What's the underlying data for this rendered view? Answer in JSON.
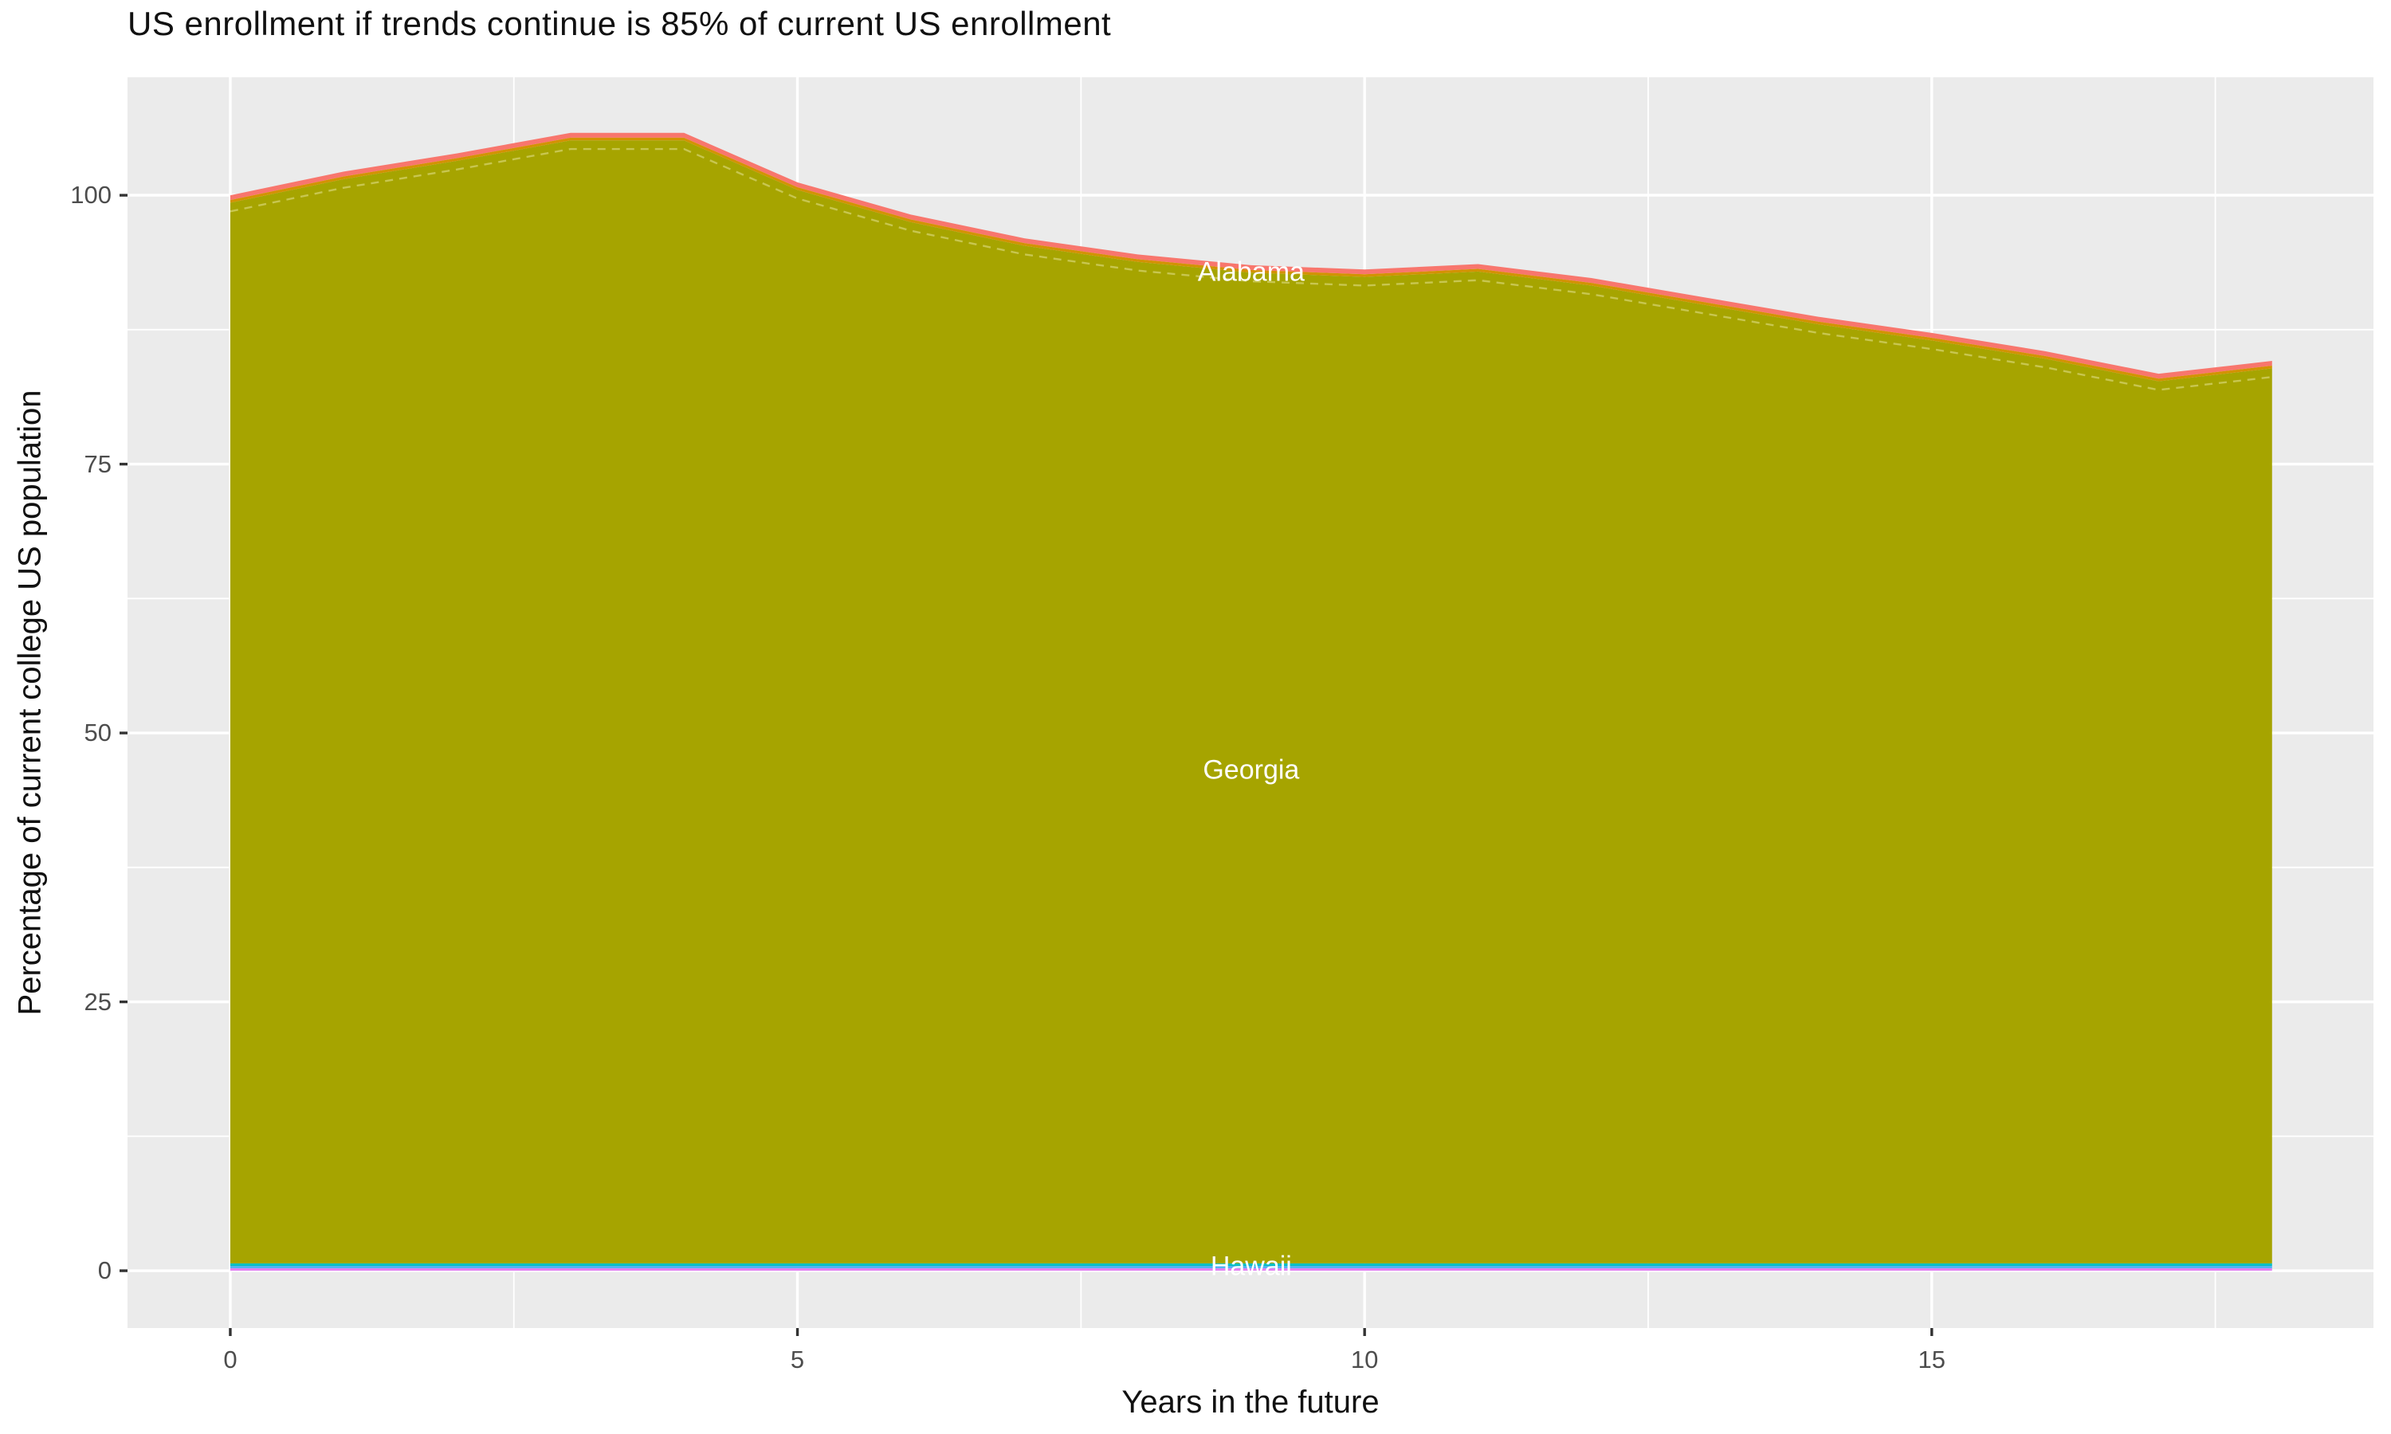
{
  "chart_data": {
    "type": "area",
    "variant": "stacked",
    "title": "US enrollment if trends continue is 85% of current US enrollment",
    "xlabel": "Years in the future",
    "ylabel": "Percentage of current college US population",
    "panel_bg": "#EBEBEB",
    "gridline_color": "#FFFFFF",
    "tick_mark_color": "#333333",
    "tick_label_color": "#4d4d4d",
    "x": [
      0,
      1,
      2,
      3,
      4,
      5,
      6,
      7,
      8,
      9,
      10,
      11,
      12,
      13,
      14,
      15,
      16,
      17,
      18
    ],
    "xticks": [
      {
        "value": 0,
        "label": "0"
      },
      {
        "value": 5,
        "label": "5"
      },
      {
        "value": 10,
        "label": "10"
      },
      {
        "value": 15,
        "label": "15"
      }
    ],
    "xticks_minor": [
      2.5,
      7.5,
      12.5,
      17.5
    ],
    "yticks": [
      {
        "value": 0,
        "label": "0"
      },
      {
        "value": 25,
        "label": "25"
      },
      {
        "value": 50,
        "label": "50"
      },
      {
        "value": 75,
        "label": "75"
      },
      {
        "value": 100,
        "label": "100"
      }
    ],
    "yticks_minor": [
      12.5,
      37.5,
      62.5,
      87.5
    ],
    "xlim": [
      -0.906,
      18.894
    ],
    "ylim": [
      -5.33,
      110.97
    ],
    "stack_top_total": [
      100.0,
      102.2,
      103.9,
      105.8,
      105.8,
      101.2,
      98.2,
      96.0,
      94.5,
      93.5,
      93.1,
      93.6,
      92.3,
      90.5,
      88.7,
      87.2,
      85.5,
      83.4,
      84.6
    ],
    "layers": [
      {
        "name": "alabama-band",
        "label": "Alabama",
        "color": "#F8766D",
        "position": "top",
        "thickness": 0.45
      },
      {
        "name": "gold-band",
        "label": null,
        "color": "#D39200",
        "position": "top",
        "thickness": 0.25
      },
      {
        "name": "georgia-area",
        "label": "Georgia",
        "color": "#A6A400",
        "position": "fill",
        "bottom": 0.68
      },
      {
        "name": "hawaii-band",
        "label": "Hawaii",
        "color": "#00BFC4",
        "position": "bottom",
        "top": 0.68,
        "bottom": 0.45
      },
      {
        "name": "azure-band",
        "label": null,
        "color": "#53B3F4",
        "position": "bottom",
        "top": 0.45,
        "bottom": 0.22
      },
      {
        "name": "magenta-band",
        "label": null,
        "color": "#E27FF0",
        "position": "bottom",
        "top": 0.22,
        "bottom": 0.0
      }
    ],
    "inner_boundary_line": {
      "offset_below_top": 1.5,
      "style": "dashed",
      "color": "rgba(255,255,210,0.38)"
    },
    "area_labels": [
      {
        "text": "Alabama",
        "x": 9,
        "y": 92.8
      },
      {
        "text": "Georgia",
        "x": 9,
        "y": 46.5
      },
      {
        "text": "Hawaii",
        "x": 9,
        "y": 0.35
      }
    ],
    "legend": "none"
  }
}
